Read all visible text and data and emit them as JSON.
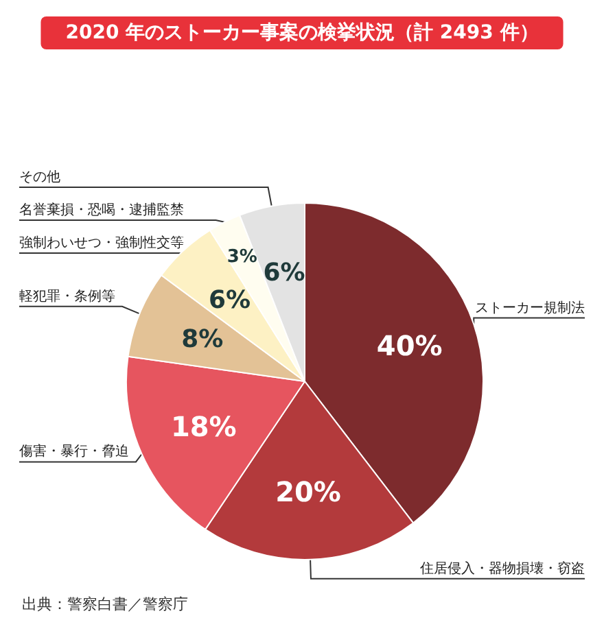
{
  "chart_data": {
    "type": "pie",
    "title": "2020 年のストーカー事案の検挙状況（計 2493 件）",
    "categories": [
      "ストーカー規制法",
      "住居侵入・器物損壊・窃盗",
      "傷害・暴行・脅迫",
      "軽犯罪・条例等",
      "強制わいせつ・強制性交等",
      "名誉棄損・恐喝・逮捕監禁",
      "その他"
    ],
    "values": [
      40,
      20,
      18,
      8,
      6,
      3,
      6
    ],
    "value_labels": [
      "40%",
      "20%",
      "18%",
      "8%",
      "6%",
      "3%",
      "6%"
    ],
    "colors": [
      "#7d2b2d",
      "#b33a3c",
      "#e6555f",
      "#e3c296",
      "#fdf1c4",
      "#fffdf0",
      "#e3e3e3"
    ],
    "legend": false,
    "annotations": [
      "出典：警察白書／警察庁"
    ]
  }
}
